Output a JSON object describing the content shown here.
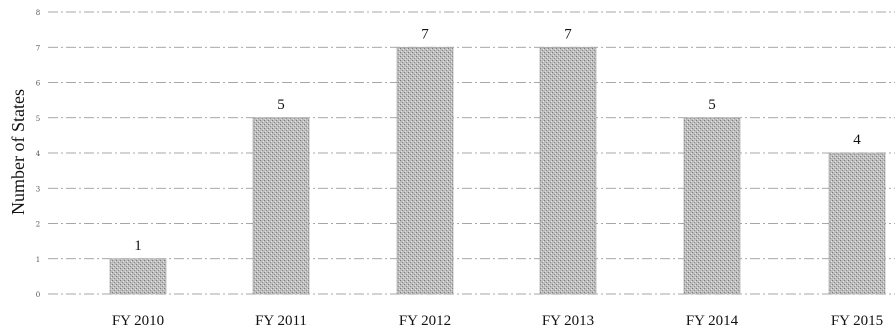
{
  "chart_data": {
    "type": "bar",
    "categories": [
      "FY 2010",
      "FY 2011",
      "FY 2012",
      "FY 2013",
      "FY 2014",
      "FY 2015"
    ],
    "values": [
      1,
      5,
      7,
      7,
      5,
      4
    ],
    "data_labels": [
      "1",
      "5",
      "7",
      "7",
      "5",
      "4"
    ],
    "ylabel": "Number of States",
    "xlabel": "",
    "ylim": [
      0,
      8
    ],
    "yticks": [
      0,
      1,
      2,
      3,
      4,
      5,
      6,
      7,
      8
    ],
    "grid": true,
    "legend": "none",
    "bar_color": "#b5b5b5"
  }
}
